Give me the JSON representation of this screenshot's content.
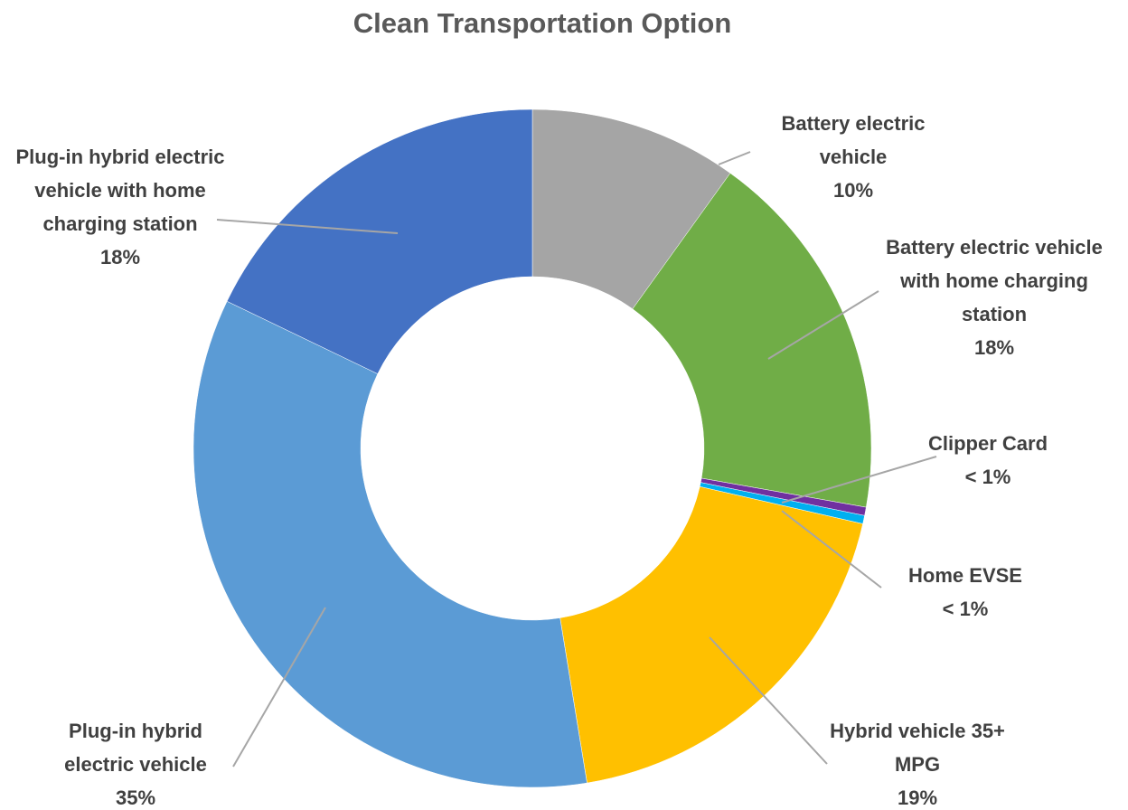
{
  "chart_data": {
    "type": "donut",
    "title": "Clean Transportation Option",
    "categories": [
      "Battery electric vehicle",
      "Battery electric vehicle with home charging station",
      "Clipper Card",
      "Home EVSE",
      "Hybrid vehicle 35+ MPG",
      "Plug-in hybrid electric vehicle",
      "Plug-in hybrid electric vehicle with home charging station"
    ],
    "values": [
      10,
      18,
      0.4,
      0.4,
      19,
      35,
      18
    ],
    "value_labels": [
      "10%",
      "18%",
      "< 1%",
      "< 1%",
      "19%",
      "35%",
      "18%"
    ],
    "colors": [
      "#a5a5a5",
      "#70ad47",
      "#7030a0",
      "#00b0f0",
      "#ffc000",
      "#5b9bd5",
      "#4472c4"
    ]
  }
}
